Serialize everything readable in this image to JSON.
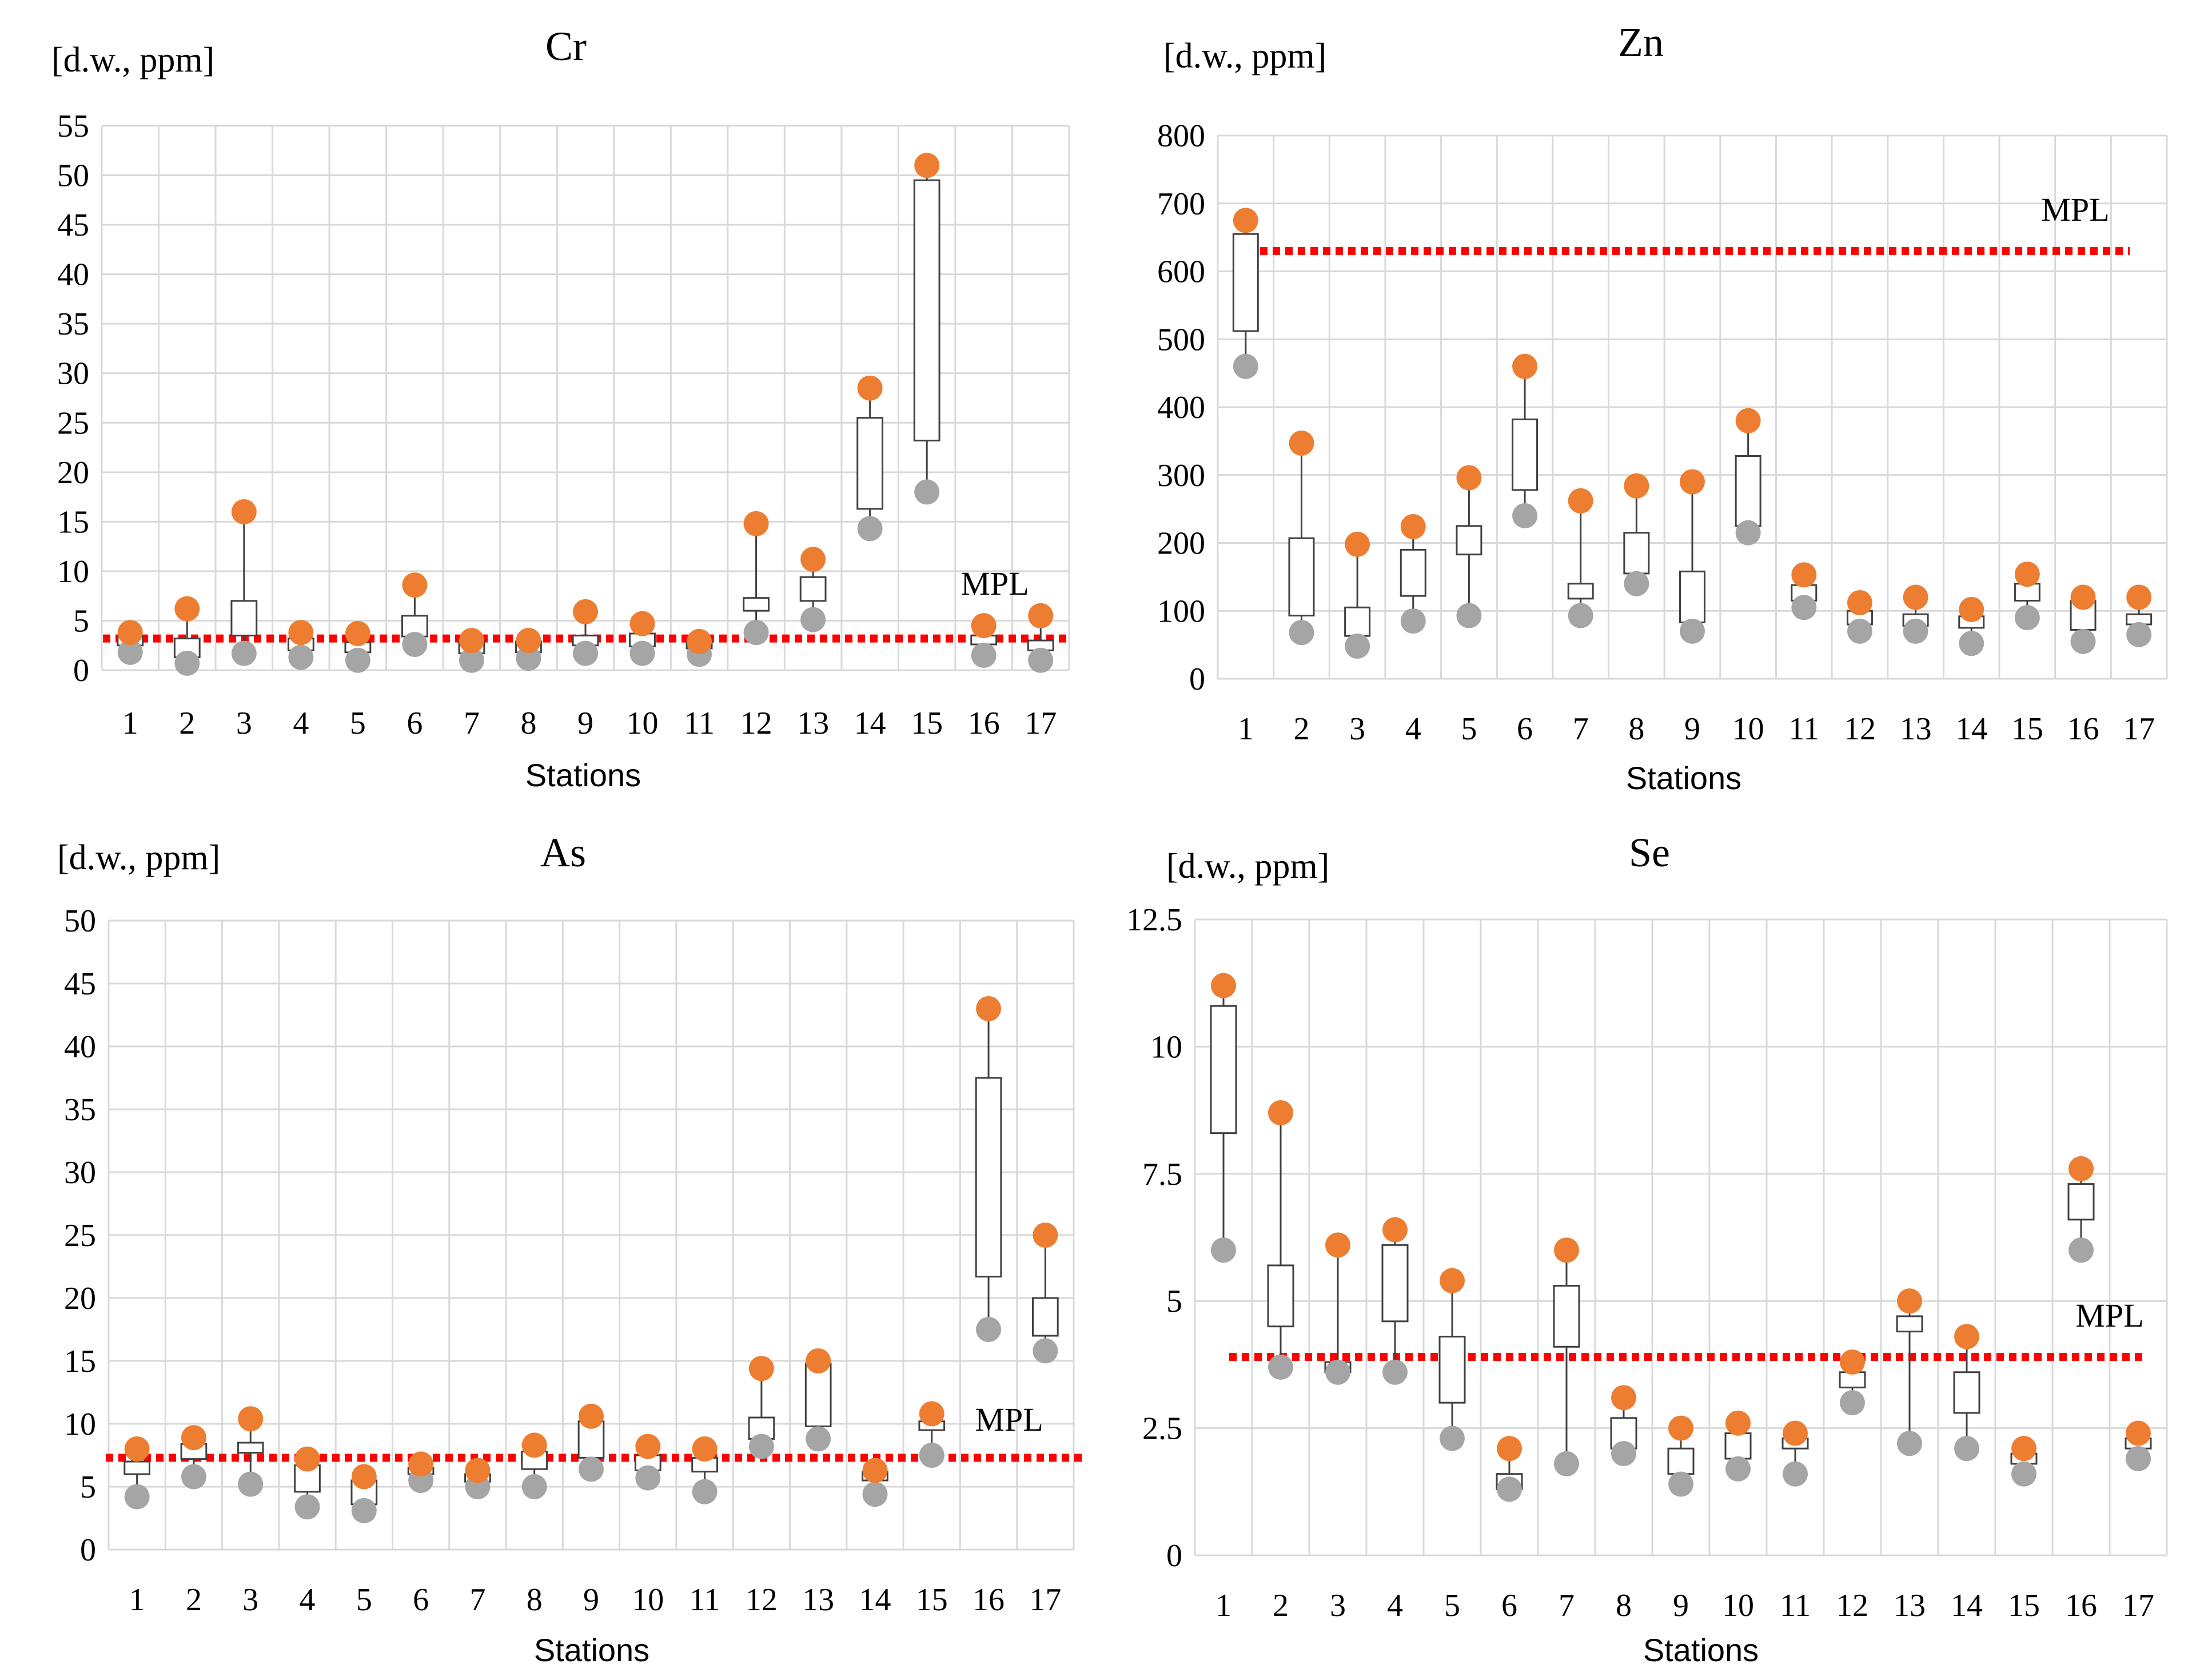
{
  "colors": {
    "max_marker": "#ed7d31",
    "min_marker": "#a5a5a5",
    "mpl_line": "#ff0000",
    "grid": "#d9d9d9",
    "box_stroke": "#404040"
  },
  "chart_data": [
    {
      "type": "box",
      "title": "Cr",
      "ylabel": "[d.w., ppm]",
      "xlabel": "Stations",
      "ylim": [
        0,
        55
      ],
      "yticks": [
        0,
        5,
        10,
        15,
        20,
        25,
        30,
        35,
        40,
        45,
        50,
        55
      ],
      "categories": [
        "1",
        "2",
        "3",
        "4",
        "5",
        "6",
        "7",
        "8",
        "9",
        "10",
        "11",
        "12",
        "13",
        "14",
        "15",
        "16",
        "17"
      ],
      "mpl": 3.2,
      "mpl_label": "MPL",
      "series": [
        {
          "name": "max",
          "values": [
            3.8,
            6.2,
            16,
            3.8,
            3.7,
            8.6,
            3,
            3,
            5.9,
            4.7,
            2.9,
            14.8,
            11.2,
            28.5,
            51,
            4.5,
            5.5
          ]
        },
        {
          "name": "q3",
          "values": [
            3.5,
            3.2,
            7,
            3.2,
            2.8,
            5.5,
            2.9,
            2.9,
            3.5,
            3.7,
            2.8,
            7.3,
            9.4,
            25.5,
            49.5,
            3.5,
            3
          ]
        },
        {
          "name": "q1",
          "values": [
            2.5,
            1.3,
            3.5,
            2,
            1.8,
            3.4,
            1.7,
            1.8,
            2.5,
            2.4,
            2.2,
            6,
            7,
            16.3,
            23.2,
            2.6,
            2
          ]
        },
        {
          "name": "min",
          "values": [
            1.8,
            0.7,
            1.7,
            1.3,
            1,
            2.6,
            1,
            1.2,
            1.7,
            1.7,
            1.6,
            3.8,
            5.1,
            14.3,
            18,
            1.5,
            1
          ]
        }
      ]
    },
    {
      "type": "box",
      "title": "Zn",
      "ylabel": "[d.w., ppm]",
      "xlabel": "Stations",
      "ylim": [
        0,
        800
      ],
      "yticks": [
        0,
        100,
        200,
        300,
        400,
        500,
        600,
        700,
        800
      ],
      "categories": [
        "1",
        "2",
        "3",
        "4",
        "5",
        "6",
        "7",
        "8",
        "9",
        "10",
        "11",
        "12",
        "13",
        "14",
        "15",
        "16",
        "17"
      ],
      "mpl": 630,
      "mpl_label": "MPL",
      "series": [
        {
          "name": "max",
          "values": [
            675,
            347,
            198,
            224,
            296,
            460,
            262,
            284,
            290,
            380,
            153,
            112,
            120,
            102,
            154,
            120,
            120
          ]
        },
        {
          "name": "q3",
          "values": [
            655,
            207,
            105,
            190,
            225,
            382,
            140,
            215,
            158,
            328,
            138,
            100,
            95,
            92,
            140,
            115,
            95
          ]
        },
        {
          "name": "q1",
          "values": [
            512,
            93,
            63,
            122,
            183,
            278,
            118,
            155,
            83,
            225,
            115,
            80,
            78,
            75,
            115,
            72,
            80
          ]
        },
        {
          "name": "min",
          "values": [
            460,
            68,
            48,
            85,
            93,
            240,
            93,
            140,
            70,
            215,
            105,
            70,
            70,
            52,
            90,
            55,
            65
          ]
        }
      ]
    },
    {
      "type": "box",
      "title": "As",
      "ylabel": "[d.w., ppm]",
      "xlabel": "Stations",
      "ylim": [
        0,
        50
      ],
      "yticks": [
        0,
        5,
        10,
        15,
        20,
        25,
        30,
        35,
        40,
        45,
        50
      ],
      "categories": [
        "1",
        "2",
        "3",
        "4",
        "5",
        "6",
        "7",
        "8",
        "9",
        "10",
        "11",
        "12",
        "13",
        "14",
        "15",
        "16",
        "17"
      ],
      "mpl": 7.3,
      "mpl_label": "MPL",
      "series": [
        {
          "name": "max",
          "values": [
            8,
            8.9,
            10.4,
            7.2,
            5.8,
            6.8,
            6.3,
            8.3,
            10.6,
            8.2,
            8,
            14.4,
            15,
            6.3,
            10.8,
            43,
            25
          ]
        },
        {
          "name": "q3",
          "values": [
            7,
            8.4,
            8.5,
            6.7,
            5.5,
            6.5,
            6,
            7.8,
            10.2,
            7.5,
            7.3,
            10.5,
            14.8,
            6.2,
            10.2,
            37.5,
            20
          ]
        },
        {
          "name": "q1",
          "values": [
            6,
            7.2,
            7.7,
            4.6,
            3.6,
            6,
            5.4,
            6.4,
            7.3,
            6.3,
            6.2,
            8.8,
            9.8,
            5.5,
            9.5,
            21.7,
            17
          ]
        },
        {
          "name": "min",
          "values": [
            4.2,
            5.8,
            5.2,
            3.4,
            3.1,
            5.5,
            5,
            5,
            6.4,
            5.7,
            4.6,
            8.2,
            8.8,
            4.4,
            7.5,
            17.5,
            15.8
          ]
        }
      ]
    },
    {
      "type": "box",
      "title": "Se",
      "ylabel": "[d.w., ppm]",
      "xlabel": "Stations",
      "ylim": [
        0,
        12.5
      ],
      "yticks": [
        0,
        2.5,
        5,
        7.5,
        10,
        12.5
      ],
      "ytick_labels": [
        "0",
        "2.5",
        "5",
        "7.5",
        "10",
        "12.5"
      ],
      "categories": [
        "1",
        "2",
        "3",
        "4",
        "5",
        "6",
        "7",
        "8",
        "9",
        "10",
        "11",
        "12",
        "13",
        "14",
        "15",
        "16",
        "17"
      ],
      "mpl": 3.9,
      "mpl_label": "MPL",
      "series": [
        {
          "name": "max",
          "values": [
            11.2,
            8.7,
            6.1,
            6.4,
            5.4,
            2.1,
            6,
            3.1,
            2.5,
            2.6,
            2.4,
            3.8,
            5,
            4.3,
            2.1,
            7.6,
            2.4
          ]
        },
        {
          "name": "q3",
          "values": [
            10.8,
            5.7,
            3.8,
            6.1,
            4.3,
            1.6,
            5.3,
            2.7,
            2.1,
            2.4,
            2.3,
            3.6,
            4.7,
            3.6,
            2,
            7.3,
            2.3
          ]
        },
        {
          "name": "q1",
          "values": [
            8.3,
            4.5,
            3.6,
            4.6,
            3,
            1.3,
            4.1,
            2.1,
            1.6,
            1.9,
            2.1,
            3.3,
            4.4,
            2.8,
            1.8,
            6.6,
            2.1
          ]
        },
        {
          "name": "min",
          "values": [
            6,
            3.7,
            3.6,
            3.6,
            2.3,
            1.3,
            1.8,
            2,
            1.4,
            1.7,
            1.6,
            3,
            2.2,
            2.1,
            1.6,
            6,
            1.9
          ]
        }
      ]
    }
  ]
}
